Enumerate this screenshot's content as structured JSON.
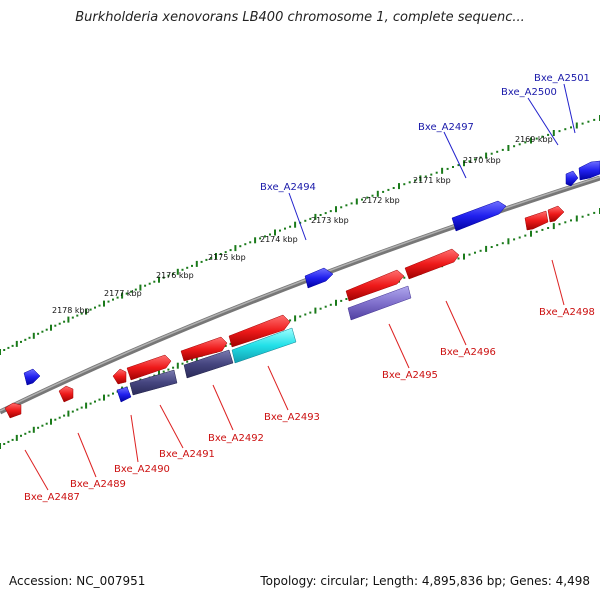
{
  "title": "Burkholderia xenovorans LB400 chromosome 1, complete sequenc...",
  "footer": {
    "accession": "Accession: NC_007951",
    "summary": "Topology: circular; Length: 4,895,836 bp; Genes: 4,498"
  },
  "colors": {
    "backbone": "#8a8a8a",
    "dots": "#1a7a1a",
    "forward_gene": "#2222ee",
    "reverse_gene": "#ee2222",
    "gene_label_forward": "#1a1aaa",
    "gene_label_reverse": "#cc1111",
    "feature_dark": "#4a4a88",
    "feature_medium": "#8070cc",
    "feature_cyan": "#22e0e8"
  },
  "ticks": [
    {
      "label": "2169 kbp"
    },
    {
      "label": "2170 kbp"
    },
    {
      "label": "2171 kbp"
    },
    {
      "label": "2172 kbp"
    },
    {
      "label": "2173 kbp"
    },
    {
      "label": "2174 kbp"
    },
    {
      "label": "2175 kbp"
    },
    {
      "label": "2176 kbp"
    },
    {
      "label": "2177 kbp"
    },
    {
      "label": "2178 kbp"
    }
  ],
  "gene_labels": [
    {
      "text": "Bxe_A2501",
      "strand": "forward"
    },
    {
      "text": "Bxe_A2500",
      "strand": "forward"
    },
    {
      "text": "Bxe_A2497",
      "strand": "forward"
    },
    {
      "text": "Bxe_A2494",
      "strand": "forward"
    },
    {
      "text": "Bxe_A2498",
      "strand": "reverse"
    },
    {
      "text": "Bxe_A2496",
      "strand": "reverse"
    },
    {
      "text": "Bxe_A2495",
      "strand": "reverse"
    },
    {
      "text": "Bxe_A2493",
      "strand": "reverse"
    },
    {
      "text": "Bxe_A2492",
      "strand": "reverse"
    },
    {
      "text": "Bxe_A2491",
      "strand": "reverse"
    },
    {
      "text": "Bxe_A2490",
      "strand": "reverse"
    },
    {
      "text": "Bxe_A2489",
      "strand": "reverse"
    },
    {
      "text": "Bxe_A2487",
      "strand": "reverse"
    }
  ]
}
